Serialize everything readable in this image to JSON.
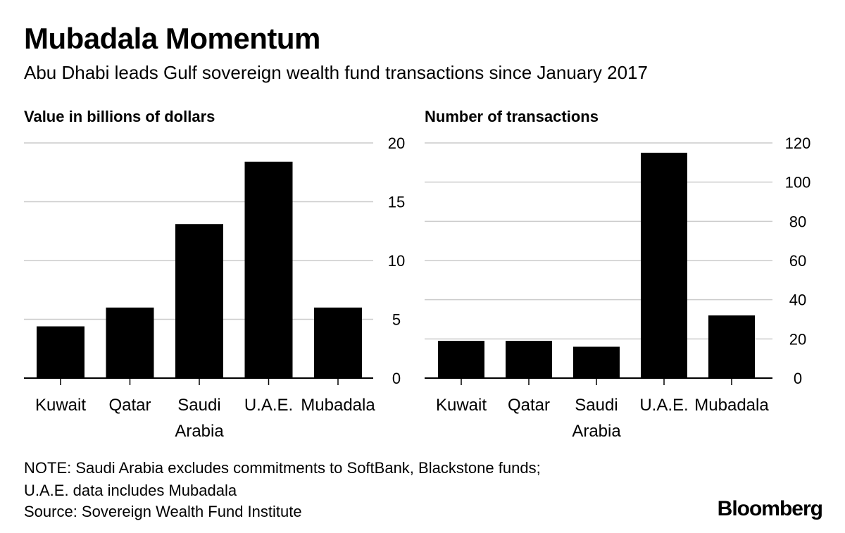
{
  "title": "Mubadala Momentum",
  "subtitle": "Abu Dhabi leads Gulf sovereign wealth fund transactions since January 2017",
  "note_line1": "NOTE: Saudi Arabia excludes commitments to SoftBank, Blackstone funds;",
  "note_line2": "U.A.E. data includes Mubadala",
  "source": "Source: Sovereign Wealth Fund Institute",
  "brand": "Bloomberg",
  "colors": {
    "bar": "#000000",
    "grid": "#cccccc",
    "axis": "#000000"
  },
  "chart_data": [
    {
      "type": "bar",
      "title": "Value in billions of dollars",
      "categories": [
        "Kuwait",
        "Qatar",
        "Saudi Arabia",
        "U.A.E.",
        "Mubadala"
      ],
      "category_lines": [
        [
          "Kuwait"
        ],
        [
          "Qatar"
        ],
        [
          "Saudi",
          "Arabia"
        ],
        [
          "U.A.E."
        ],
        [
          "Mubadala"
        ]
      ],
      "values": [
        4.4,
        6.0,
        13.1,
        18.4,
        6.0
      ],
      "ylim": [
        0,
        20
      ],
      "yticks": [
        0,
        5,
        10,
        15,
        20
      ],
      "xlabel": "",
      "ylabel": "",
      "grid": true,
      "yaxis_side": "right"
    },
    {
      "type": "bar",
      "title": "Number of transactions",
      "categories": [
        "Kuwait",
        "Qatar",
        "Saudi Arabia",
        "U.A.E.",
        "Mubadala"
      ],
      "category_lines": [
        [
          "Kuwait"
        ],
        [
          "Qatar"
        ],
        [
          "Saudi",
          "Arabia"
        ],
        [
          "U.A.E."
        ],
        [
          "Mubadala"
        ]
      ],
      "values": [
        19,
        19,
        16,
        115,
        32
      ],
      "ylim": [
        0,
        120
      ],
      "yticks": [
        0,
        20,
        40,
        60,
        80,
        100,
        120
      ],
      "xlabel": "",
      "ylabel": "",
      "grid": true,
      "yaxis_side": "right"
    }
  ]
}
